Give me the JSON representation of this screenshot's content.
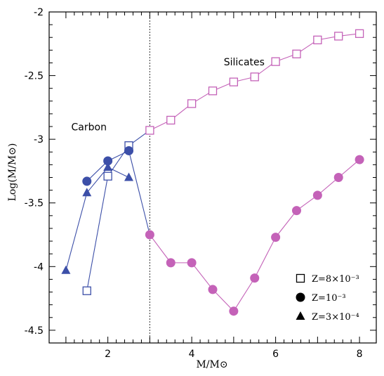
{
  "chart_data": {
    "type": "scatter",
    "xlabel": "M/M⊙",
    "ylabel": "Log(M/M⊙)",
    "xlim": [
      0.6,
      8.4
    ],
    "ylim": [
      -4.6,
      -2.0
    ],
    "xticks": [
      2,
      4,
      6,
      8
    ],
    "yticks": [
      -4.5,
      -4,
      -3.5,
      -3,
      -2.5,
      -2
    ],
    "xtick_labels": [
      "2",
      "4",
      "6",
      "8"
    ],
    "ytick_labels": [
      "-4.5",
      "-4",
      "-3.5",
      "-3",
      "-2.5",
      "-2"
    ],
    "vline_x": 3,
    "grid": false,
    "legend_position": "bottom-right",
    "colors": {
      "carbon": "#3c4fa8",
      "silicates": "#c462b8",
      "axis": "#000000"
    },
    "annotations": [
      {
        "text": "Carbon",
        "x": 1.55,
        "y": -2.93
      },
      {
        "text": "Silicates",
        "x": 5.25,
        "y": -2.42
      }
    ],
    "series": [
      {
        "name": "Z=8×10⁻³",
        "marker": "square-open",
        "x": [
          1.5,
          2.0,
          2.5,
          3.0,
          3.5,
          4.0,
          4.5,
          5.0,
          5.5,
          6.0,
          6.5,
          7.0,
          7.5,
          8.0
        ],
        "y": [
          -4.19,
          -3.29,
          -3.05,
          -2.93,
          -2.85,
          -2.72,
          -2.62,
          -2.55,
          -2.51,
          -2.39,
          -2.33,
          -2.22,
          -2.19,
          -2.17
        ]
      },
      {
        "name": "Z=10⁻³",
        "marker": "circle-filled",
        "x": [
          1.5,
          2.0,
          2.5,
          3.0,
          3.5,
          4.0,
          4.5,
          5.0,
          5.5,
          6.0,
          6.5,
          7.0,
          7.5,
          8.0
        ],
        "y": [
          -3.33,
          -3.17,
          -3.09,
          -3.75,
          -3.97,
          -3.97,
          -4.18,
          -4.35,
          -4.09,
          -3.77,
          -3.56,
          -3.44,
          -3.3,
          -3.16
        ]
      },
      {
        "name": "Z=3×10⁻⁴",
        "marker": "triangle-filled",
        "x": [
          1.0,
          1.5,
          2.0,
          2.5
        ],
        "y": [
          -4.03,
          -3.42,
          -3.22,
          -3.3
        ]
      }
    ],
    "legend": [
      {
        "label": "Z=8×10⁻³",
        "marker": "square-open"
      },
      {
        "label": "Z=10⁻³",
        "marker": "circle-filled"
      },
      {
        "label": "Z=3×10⁻⁴",
        "marker": "triangle-filled"
      }
    ]
  }
}
